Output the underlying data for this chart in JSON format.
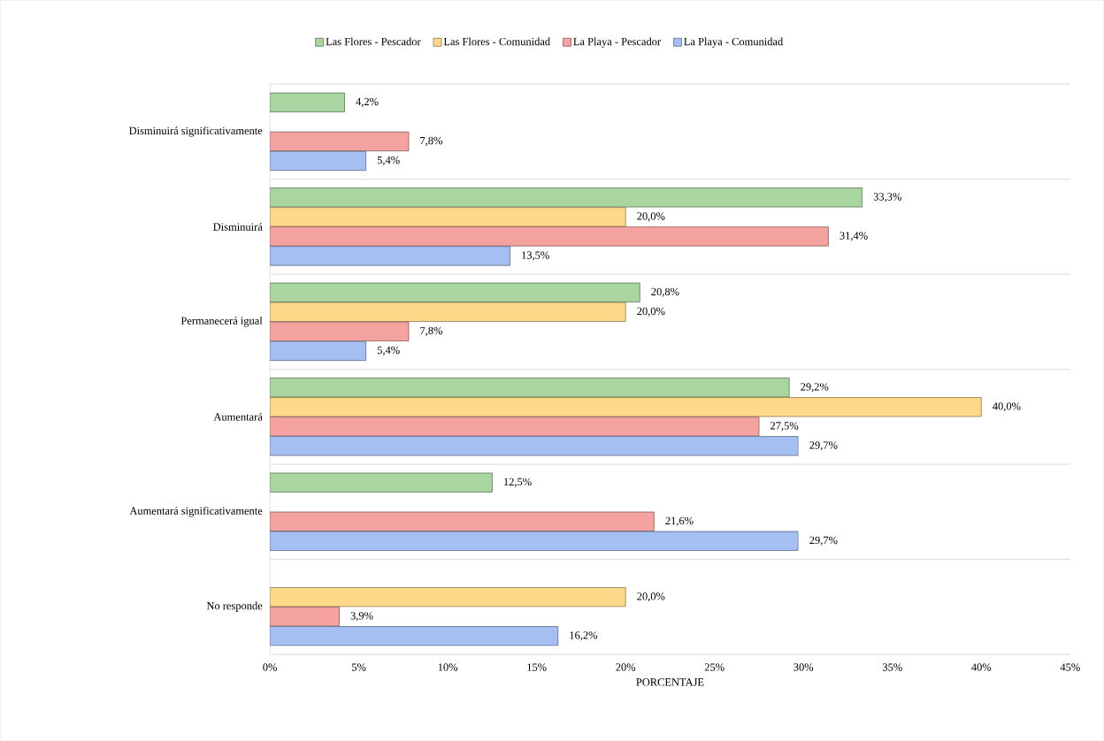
{
  "chart_data": {
    "type": "bar",
    "orientation": "horizontal",
    "categories": [
      "Disminuirá significativamente",
      "Disminuirá",
      "Permanecerá igual",
      "Aumentará",
      "Aumentará significativamente",
      "No responde"
    ],
    "series": [
      {
        "name": "Las Flores - Pescador",
        "color": "#a9d5a0",
        "values": [
          4.2,
          33.3,
          20.8,
          29.2,
          12.5,
          null
        ],
        "value_labels": [
          "4,2%",
          "33,3%",
          "20,8%",
          "29,2%",
          "12,5%",
          null
        ]
      },
      {
        "name": "Las Flores - Comunidad",
        "color": "#ffd98a",
        "values": [
          null,
          20.0,
          20.0,
          40.0,
          null,
          20.0
        ],
        "value_labels": [
          null,
          "20,0%",
          "20,0%",
          "40,0%",
          null,
          "20,0%"
        ]
      },
      {
        "name": "La Playa - Pescador",
        "color": "#f4a3a0",
        "values": [
          7.8,
          31.4,
          7.8,
          27.5,
          21.6,
          3.9
        ],
        "value_labels": [
          "7,8%",
          "31,4%",
          "7,8%",
          "27,5%",
          "21,6%",
          "3,9%"
        ]
      },
      {
        "name": "La Playa - Comunidad",
        "color": "#a5bff2",
        "values": [
          5.4,
          13.5,
          5.4,
          29.7,
          29.7,
          16.2
        ],
        "value_labels": [
          "5,4%",
          "13,5%",
          "5,4%",
          "29,7%",
          "29,7%",
          "16,2%"
        ]
      }
    ],
    "xlim": [
      0,
      45
    ],
    "xticks": [
      {
        "value": 0,
        "label": "0%"
      },
      {
        "value": 5,
        "label": "5%"
      },
      {
        "value": 10,
        "label": "10%"
      },
      {
        "value": 15,
        "label": "15%"
      },
      {
        "value": 20,
        "label": "20%"
      },
      {
        "value": 25,
        "label": "25%"
      },
      {
        "value": 30,
        "label": "30%"
      },
      {
        "value": 35,
        "label": "35%"
      },
      {
        "value": 40,
        "label": "40%"
      },
      {
        "value": 45,
        "label": "45%"
      }
    ],
    "xlabel": "PORCENTAJE",
    "grid": "y",
    "legend": "top"
  }
}
